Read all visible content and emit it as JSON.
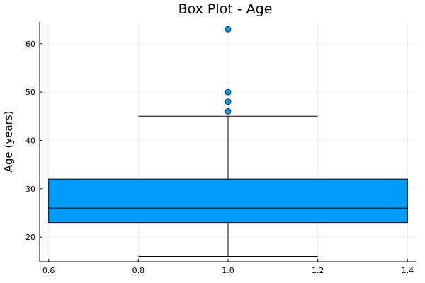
{
  "chart_data": {
    "type": "box",
    "title": "Box Plot - Age",
    "xlabel": "",
    "ylabel": "Age (years)",
    "xlim": [
      0.58,
      1.42
    ],
    "ylim": [
      14.9,
      64.5
    ],
    "x_ticks": [
      0.6,
      0.8,
      1.0,
      1.2,
      1.4
    ],
    "x_tick_labels": [
      "0.6",
      "0.8",
      "1.0",
      "1.2",
      "1.4"
    ],
    "y_ticks": [
      20,
      30,
      40,
      50,
      60
    ],
    "y_tick_labels": [
      "20",
      "30",
      "40",
      "50",
      "60"
    ],
    "grid": true,
    "legend": "none",
    "box": {
      "x_center": 1.0,
      "box_left": 0.6,
      "box_right": 1.4,
      "whisker_left": 0.8,
      "whisker_right": 1.2,
      "q1": 23,
      "median": 26,
      "q3": 32,
      "whisker_low": 16,
      "whisker_high": 45
    },
    "outliers": [
      {
        "x": 1.0,
        "y": 46
      },
      {
        "x": 1.0,
        "y": 48
      },
      {
        "x": 1.0,
        "y": 50
      },
      {
        "x": 1.0,
        "y": 63
      }
    ],
    "colors": {
      "box_fill": "#009af9",
      "outline": "#000000",
      "grid": "#e6e6e6",
      "axis": "#000000"
    }
  }
}
